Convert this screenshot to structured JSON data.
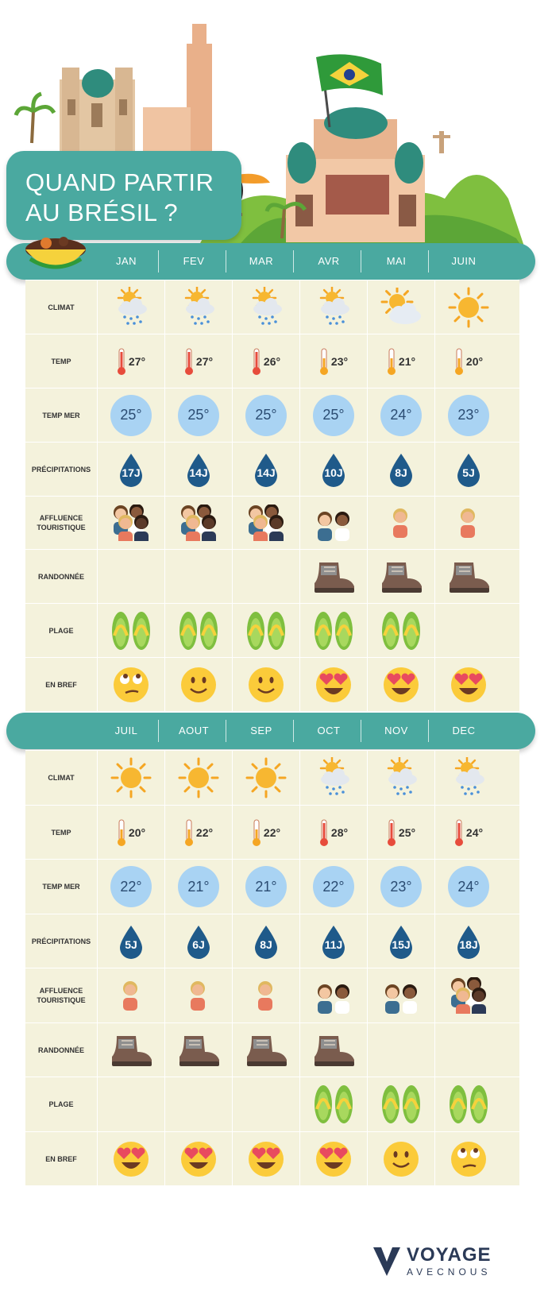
{
  "title": {
    "line1": "QUAND PARTIR",
    "line2": "AU BRÉSIL ?"
  },
  "row_labels": {
    "climat": "CLIMAT",
    "temp": "TEMP",
    "temp_mer": "TEMP MER",
    "precipitations": "PRÉCIPITATIONS",
    "affluence": "AFFLUENCE TOURISTIQUE",
    "randonnee": "RANDONNÉE",
    "plage": "PLAGE",
    "en_bref": "EN BREF"
  },
  "sections": [
    {
      "months": [
        "JAN",
        "FEV",
        "MAR",
        "AVR",
        "MAI",
        "JUIN"
      ],
      "climat": [
        "sun-rain-icon",
        "sun-rain-icon",
        "sun-rain-icon",
        "sun-rain-icon",
        "sun-cloud-icon",
        "sun-icon"
      ],
      "temp": [
        "27°",
        "27°",
        "26°",
        "23°",
        "21°",
        "20°"
      ],
      "thermo": [
        "hot",
        "hot",
        "hot",
        "mild",
        "mild",
        "mild"
      ],
      "temp_mer": [
        "25°",
        "25°",
        "25°",
        "25°",
        "24°",
        "23°"
      ],
      "precipitations": [
        "17J",
        "14J",
        "14J",
        "10J",
        "8J",
        "5J"
      ],
      "affluence": [
        4,
        4,
        4,
        2,
        1,
        1
      ],
      "randonnee": [
        false,
        false,
        false,
        true,
        true,
        true
      ],
      "plage": [
        true,
        true,
        true,
        true,
        true,
        false
      ],
      "en_bref": [
        "eyeroll",
        "smile",
        "smile",
        "heart-eyes",
        "heart-eyes",
        "heart-eyes"
      ]
    },
    {
      "months": [
        "JUIL",
        "AOUT",
        "SEP",
        "OCT",
        "NOV",
        "DEC"
      ],
      "climat": [
        "sun-icon",
        "sun-icon",
        "sun-icon",
        "sun-rain-icon",
        "sun-rain-icon",
        "sun-rain-icon"
      ],
      "temp": [
        "20°",
        "22°",
        "22°",
        "28°",
        "25°",
        "24°"
      ],
      "thermo": [
        "mild",
        "mild",
        "mild",
        "hot",
        "hot",
        "hot"
      ],
      "temp_mer": [
        "22°",
        "21°",
        "21°",
        "22°",
        "23°",
        "24°"
      ],
      "precipitations": [
        "5J",
        "6J",
        "8J",
        "11J",
        "15J",
        "18J"
      ],
      "affluence": [
        1,
        1,
        1,
        2,
        2,
        4
      ],
      "randonnee": [
        true,
        true,
        true,
        true,
        false,
        false
      ],
      "plage": [
        false,
        false,
        false,
        true,
        true,
        true
      ],
      "en_bref": [
        "heart-eyes",
        "heart-eyes",
        "heart-eyes",
        "heart-eyes",
        "smile",
        "eyeroll"
      ]
    }
  ],
  "brand": {
    "line1": "VOYAGE",
    "line2": "AVECNOUS"
  },
  "colors": {
    "teal": "#4aa9a0",
    "cell_bg": "#f4f2dc",
    "sea": "#a9d3f3",
    "drop": "#1f5a8a",
    "accent_green": "#7fbf3f"
  }
}
